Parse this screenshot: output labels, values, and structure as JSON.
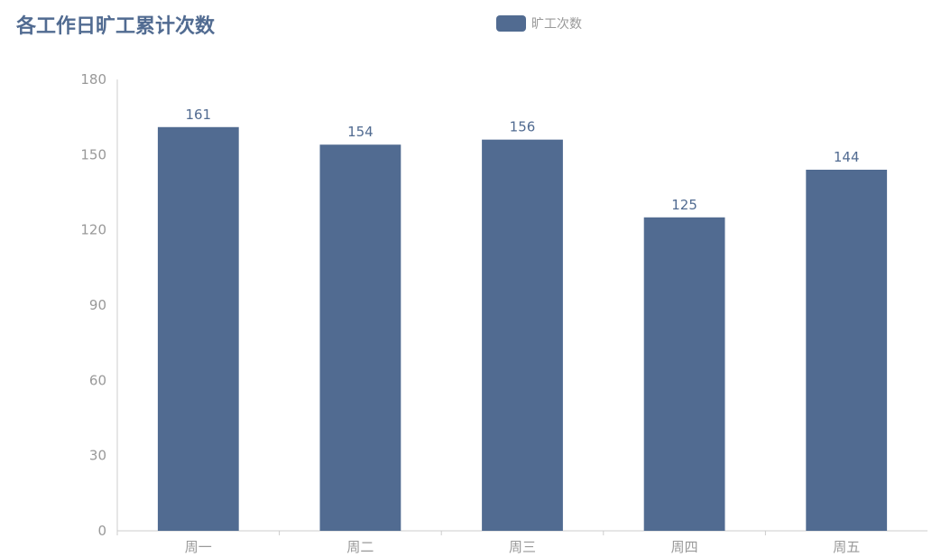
{
  "chart_data": {
    "type": "bar",
    "title": "各工作日旷工累计次数",
    "categories": [
      "周一",
      "周二",
      "周三",
      "周四",
      "周五"
    ],
    "series": [
      {
        "name": "旷工次数",
        "values": [
          161,
          154,
          156,
          125,
          144
        ]
      }
    ],
    "ylim": [
      0,
      180
    ],
    "yticks": [
      "0",
      "30",
      "60",
      "90",
      "120",
      "150",
      "180"
    ],
    "xlabel": "",
    "ylabel": "",
    "grid": false,
    "legend_position": "top-center",
    "data_labels": true
  },
  "colors": {
    "bar": "#516b91",
    "title": "#516b91",
    "axis": "#cccccc",
    "tick_text": "#999999"
  }
}
